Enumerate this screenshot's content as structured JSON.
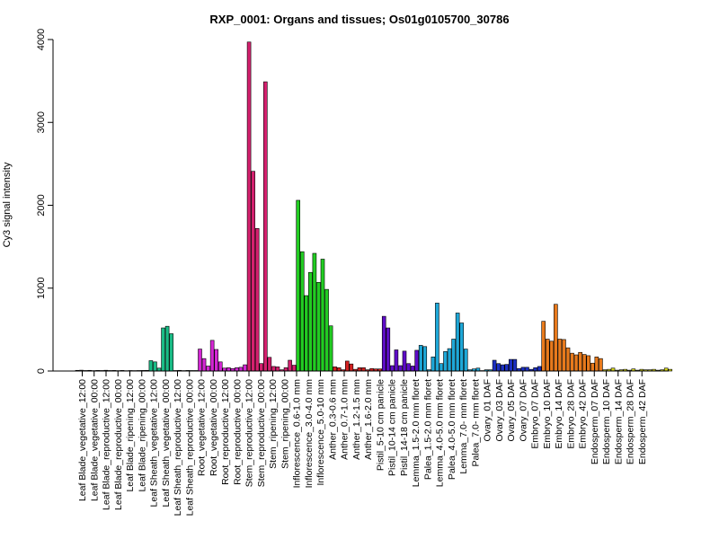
{
  "chart_data": {
    "type": "bar",
    "title": "RXP_0001: Organs and tissues; Os01g0105700_30786",
    "ylabel": "Cy3 signal intensity",
    "xlabel": "",
    "ylim": [
      0,
      4000
    ],
    "yticks": [
      0,
      1000,
      2000,
      3000,
      4000
    ],
    "grid": false,
    "legend": "none",
    "x_labels": [
      "Leaf Blade_vegetative_12:00",
      "Leaf Blade_vegetative_00:00",
      "Leaf Blade_reproductive_12:00",
      "Leaf Blade_reproductive_00:00",
      "Leaf Blade_ripening_12:00",
      "Leaf Blade_ripening_00:00",
      "Leaf Sheath_vegetative_12:00",
      "Leaf Sheath_vegetative_00:00",
      "Leaf Sheath_reproductive_12:00",
      "Leaf Sheath_reproductive_00:00",
      "Root_vegetative_12:00",
      "Root_vegetative_00:00",
      "Root_reproductive_12:00",
      "Root_reproductive_00:00",
      "Stem_reproductive_12:00",
      "Stem_reproductive_00:00",
      "Stem_ripening_12:00",
      "Stem_ripening_00:00",
      "Inflorescence_0.6-1.0 mm",
      "Inflorescence_3.0-4.0 mm",
      "Inflorescence_5.0-10 mm",
      "Anther_0.3-0.6 mm",
      "Anther_0.7-1.0 mm",
      "Anther_1.2-1.5 mm",
      "Anther_1.6-2.0 mm",
      "Pistil_5-10 cm panicle",
      "Pistil_10-14 cm panicle",
      "Pistil_14-18 cm panicle",
      "Lemma_1.5-2.0 mm floret",
      "Palea_1.5-2.0 mm floret",
      "Lemma_4.0-5.0 mm floret",
      "Palea_4.0-5.0 mm floret",
      "Lemma_7.0- mm floret",
      "Palea_7.0- mm floret",
      "Ovary_01 DAF",
      "Ovary_03 DAF",
      "Ovary_05 DAF",
      "Ovary_07 DAF",
      "Embryo_07 DAF",
      "Embryo_10 DAF",
      "Embryo_14 DAF",
      "Embryo_28 DAF",
      "Embryo_42 DAF",
      "Endosperm_07 DAF",
      "Endosperm_10 DAF",
      "Endosperm_14 DAF",
      "Endosperm_28 DAF",
      "Endosperm_42 DAF"
    ],
    "groups": [
      {
        "color": "#3f3f3f",
        "values": [
          8,
          10,
          6,
          8,
          5,
          7,
          6,
          9,
          6,
          7,
          5,
          7,
          4,
          6,
          5,
          6,
          7,
          8
        ]
      },
      {
        "color": "#1abc86",
        "values": [
          125,
          110,
          35,
          520,
          540,
          450,
          6,
          8,
          5,
          7,
          6,
          6
        ]
      },
      {
        "color": "#d426d4",
        "values": [
          265,
          150,
          60,
          370,
          260,
          110,
          35,
          40,
          30,
          40,
          45,
          75
        ]
      },
      {
        "color": "#d4206e",
        "values": [
          3970,
          2410,
          1720,
          90,
          3490,
          165,
          55,
          50,
          15,
          40,
          130,
          70
        ]
      },
      {
        "color": "#22cc22",
        "values": [
          2060,
          1440,
          910,
          1190,
          1420,
          1070,
          1350,
          985,
          545
        ]
      },
      {
        "color": "#d42020",
        "values": [
          50,
          40,
          15,
          120,
          85,
          20,
          40,
          40,
          15,
          30,
          25,
          25
        ]
      },
      {
        "color": "#5e0cc8",
        "values": [
          660,
          520,
          65,
          255,
          65,
          240,
          90,
          60,
          250
        ]
      },
      {
        "color": "#1ea8d8",
        "values": [
          310,
          295,
          15,
          170,
          820,
          90,
          235,
          270,
          385,
          700,
          580,
          265,
          15,
          25,
          35,
          5,
          15,
          15
        ]
      },
      {
        "color": "#1c2fc4",
        "values": [
          130,
          90,
          75,
          80,
          140,
          140,
          30,
          45,
          45,
          20,
          40,
          55
        ]
      },
      {
        "color": "#e87a1c",
        "values": [
          600,
          385,
          360,
          805,
          385,
          380,
          280,
          215,
          195,
          225,
          200,
          185,
          95,
          170,
          150
        ]
      },
      {
        "color": "#d4d41c",
        "values": [
          15,
          20,
          35,
          10,
          15,
          20,
          10,
          25,
          10,
          20,
          15,
          15,
          20,
          10,
          15,
          35,
          20
        ]
      }
    ]
  }
}
